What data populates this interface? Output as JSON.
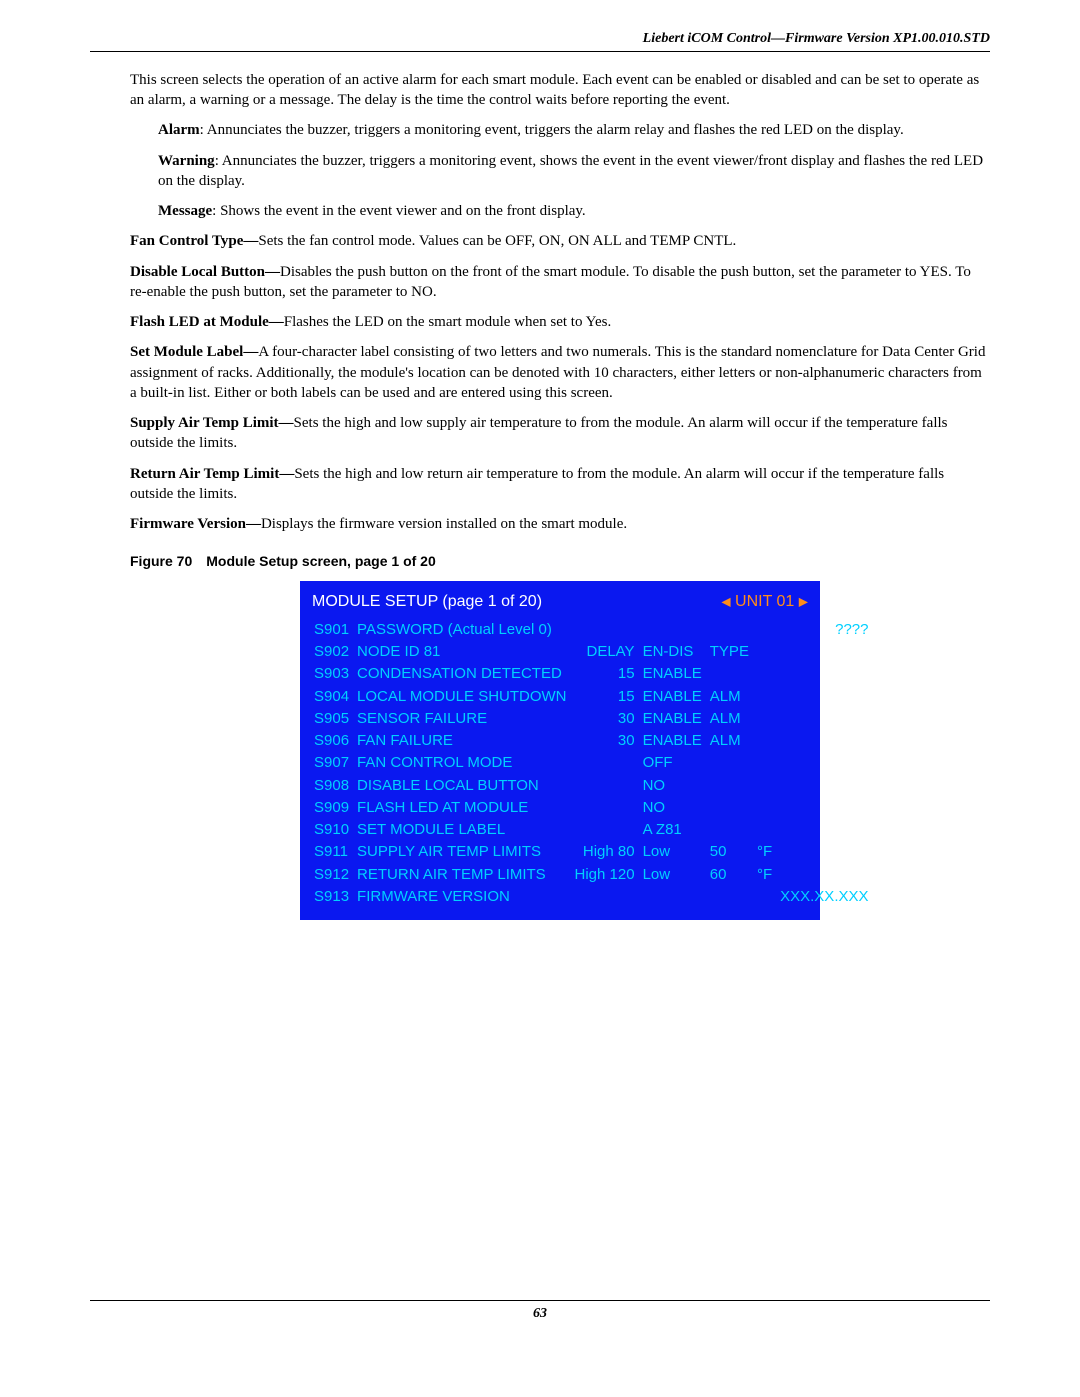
{
  "header": "Liebert iCOM Control—Firmware Version XP1.00.010.STD",
  "intro": "This screen selects the operation of an active alarm for each smart module. Each event can be enabled or disabled and can be set to operate as an alarm, a warning or a message. The delay is the time the control waits before reporting the event.",
  "defs": {
    "alarm_b": "Alarm",
    "alarm": ": Annunciates the buzzer, triggers a monitoring event, triggers the alarm relay and flashes the red LED on the display.",
    "warning_b": "Warning",
    "warning": ": Annunciates the buzzer, triggers a monitoring event, shows the event in the event viewer/front display and flashes the red LED on the display.",
    "message_b": "Message",
    "message": ": Shows the event in the event viewer and on the front display."
  },
  "params": {
    "fan_b": "Fan Control Type—",
    "fan": "Sets the fan control mode. Values can be OFF, ON, ON ALL and TEMP CNTL.",
    "disable_b": "Disable Local Button—",
    "disable": "Disables the push button on the front of the smart module. To disable the push button, set the parameter to YES. To re-enable the push button, set the parameter to NO.",
    "flash_b": "Flash LED at Module—",
    "flash": "Flashes the LED on the smart module when set to Yes.",
    "label_b": "Set Module Label—",
    "label": "A four-character label consisting of two letters and two numerals. This is the standard nomenclature for Data Center Grid assignment of racks. Additionally, the module's location can be denoted with 10 characters, either letters or non-alphanumeric characters from a built-in list. Either or both labels can be used and are entered using this screen.",
    "supply_b": "Supply Air Temp Limit—",
    "supply": "Sets the high and low supply air temperature to from the module. An alarm will occur if the temperature falls outside the limits.",
    "return_b": "Return Air Temp Limit—",
    "return": "Sets the high and low return air temperature to from the module. An alarm will occur if the temperature falls outside the limits.",
    "fw_b": "Firmware Version—",
    "fw": "Displays the firmware version installed on the smart module."
  },
  "figure": {
    "num": "Figure 70",
    "caption": "Module Setup screen, page 1 of 20"
  },
  "screen": {
    "title": "MODULE SETUP (page 1 of 20)",
    "unit": "UNIT 01",
    "hdr_delay": "DELAY",
    "hdr_endis": "EN-DIS",
    "hdr_type": "TYPE",
    "rows": [
      {
        "code": "S901",
        "label": "PASSWORD  (Actual Level 0)",
        "c1": "",
        "c2": "",
        "c3": "",
        "c4": "",
        "val": "????"
      },
      {
        "code": "S902",
        "label": "NODE ID 81",
        "c1": "DELAY",
        "c2": "EN-DIS",
        "c3": "TYPE",
        "c4": "",
        "val": ""
      },
      {
        "code": "S903",
        "label": "CONDENSATION DETECTED",
        "c1": "15",
        "c2": "ENABLE",
        "c3": "",
        "c4": "",
        "val": ""
      },
      {
        "code": "S904",
        "label": "LOCAL MODULE SHUTDOWN",
        "c1": "15",
        "c2": "ENABLE",
        "c3": "ALM",
        "c4": "",
        "val": ""
      },
      {
        "code": "S905",
        "label": "SENSOR FAILURE",
        "c1": "30",
        "c2": "ENABLE",
        "c3": "ALM",
        "c4": "",
        "val": ""
      },
      {
        "code": "S906",
        "label": "FAN FAILURE",
        "c1": "30",
        "c2": "ENABLE",
        "c3": "ALM",
        "c4": "",
        "val": ""
      },
      {
        "code": "S907",
        "label": "FAN CONTROL MODE",
        "c1": "",
        "c2": "OFF",
        "c3": "",
        "c4": "",
        "val": ""
      },
      {
        "code": "S908",
        "label": "DISABLE LOCAL BUTTON",
        "c1": "",
        "c2": "NO",
        "c3": "",
        "c4": "",
        "val": ""
      },
      {
        "code": "S909",
        "label": "FLASH LED AT MODULE",
        "c1": "",
        "c2": "NO",
        "c3": "",
        "c4": "",
        "val": ""
      },
      {
        "code": "S910",
        "label": "SET MODULE LABEL",
        "c1": "",
        "c2": "A Z81",
        "c3": "",
        "c4": "",
        "val": ""
      },
      {
        "code": "S911",
        "label": "SUPPLY AIR TEMP LIMITS",
        "c1": "High  80",
        "c2": "Low",
        "c3": "50",
        "c4": "°F",
        "val": ""
      },
      {
        "code": "S912",
        "label": "RETURN AIR TEMP LIMITS",
        "c1": "High 120",
        "c2": "Low",
        "c3": "60",
        "c4": "°F",
        "val": ""
      },
      {
        "code": "S913",
        "label": "FIRMWARE VERSION",
        "c1": "",
        "c2": "",
        "c3": "",
        "c4": "",
        "val": "XXX.XX.XXX"
      }
    ]
  },
  "page_number": "63",
  "colors": {
    "screen_bg": "#0a18f0",
    "cyan": "#00d0ff",
    "orange": "#ff8c1a"
  }
}
